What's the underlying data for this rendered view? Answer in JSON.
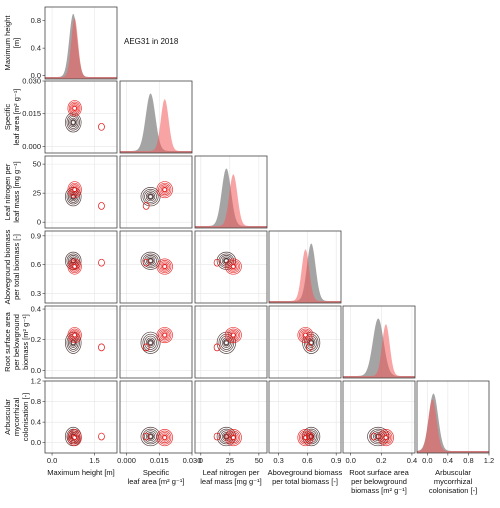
{
  "chart_data": {
    "type": "pair-plot",
    "annotation": "AEG31 in 2018",
    "colors": {
      "group_a": "#7d7d7d",
      "group_b": "#f25a5a",
      "contour_a": "#3a2020",
      "contour_b": "#e81010",
      "frame": "#444444",
      "grid": "#e6e6e6"
    },
    "variables": [
      {
        "id": "height",
        "ylabel": [
          "Maximum height",
          "[m]"
        ],
        "xlabel": [
          "Maximum height [m]"
        ],
        "range": [
          -0.25,
          2.3
        ],
        "ticks": [
          0.0,
          1.5
        ],
        "tick_labels": [
          "0.0",
          "1.5"
        ]
      },
      {
        "id": "sla",
        "ylabel": [
          "Specific",
          "leaf area [m² g⁻¹]"
        ],
        "xlabel": [
          "Specific",
          "leaf area [m² g⁻¹]"
        ],
        "range": [
          -0.003,
          0.03
        ],
        "ticks": [
          0.0,
          0.015,
          0.03
        ],
        "tick_labels": [
          "0.000",
          "0.015",
          "0.030"
        ]
      },
      {
        "id": "lnm",
        "ylabel": [
          "Leaf nitrogen per",
          "leaf mass [mg g⁻¹]"
        ],
        "xlabel": [
          "Leaf nitrogen per",
          "leaf mass [mg g⁻¹]"
        ],
        "range": [
          -5,
          57
        ],
        "ticks": [
          0,
          25,
          50
        ],
        "tick_labels": [
          "0",
          "25",
          "50"
        ]
      },
      {
        "id": "agb",
        "ylabel": [
          "Aboveground biomass",
          "per total biomass [-]"
        ],
        "xlabel": [
          "Aboveground biomass",
          "per total biomass [-]"
        ],
        "range": [
          0.2,
          0.95
        ],
        "ticks": [
          0.3,
          0.6,
          0.9
        ],
        "tick_labels": [
          "0.3",
          "0.6",
          "0.9"
        ]
      },
      {
        "id": "rsa",
        "ylabel": [
          "Root surface area",
          "per belowground",
          "biomass [m² g⁻¹]"
        ],
        "xlabel": [
          "Root surface area",
          "per belowground",
          "biomass [m² g⁻¹]"
        ],
        "range": [
          -0.05,
          0.42
        ],
        "ticks": [
          0.0,
          0.2,
          0.4
        ],
        "tick_labels": [
          "0.0",
          "0.2",
          "0.4"
        ]
      },
      {
        "id": "amf",
        "ylabel": [
          "Arbuscular",
          "mycorrhizal",
          "colonisation [-]"
        ],
        "xlabel": [
          "Arbuscular",
          "mycorrhizal",
          "colonisation [-]"
        ],
        "range": [
          -0.2,
          1.2
        ],
        "ticks": [
          0.0,
          0.4,
          0.8,
          1.2
        ],
        "tick_labels": [
          "0.0",
          "0.4",
          "0.8",
          "1.2"
        ]
      }
    ],
    "first_density_axis": {
      "ticks": [
        0.0,
        0.4,
        0.8
      ],
      "tick_labels": [
        "0.0",
        "0.4",
        "0.8"
      ],
      "range": [
        -0.05,
        1.0
      ]
    },
    "groups": {
      "a": {
        "means": [
          0.75,
          0.011,
          22,
          0.64,
          0.18,
          0.12
        ],
        "sds": [
          0.14,
          0.0022,
          4.0,
          0.045,
          0.035,
          0.09
        ]
      },
      "b": {
        "means": [
          0.8,
          0.0175,
          28,
          0.58,
          0.23,
          0.1
        ],
        "sds": [
          0.12,
          0.0018,
          3.5,
          0.04,
          0.025,
          0.08
        ]
      }
    },
    "red_outlier": [
      1.75,
      0.009,
      14,
      0.62,
      0.15,
      0.12
    ]
  }
}
